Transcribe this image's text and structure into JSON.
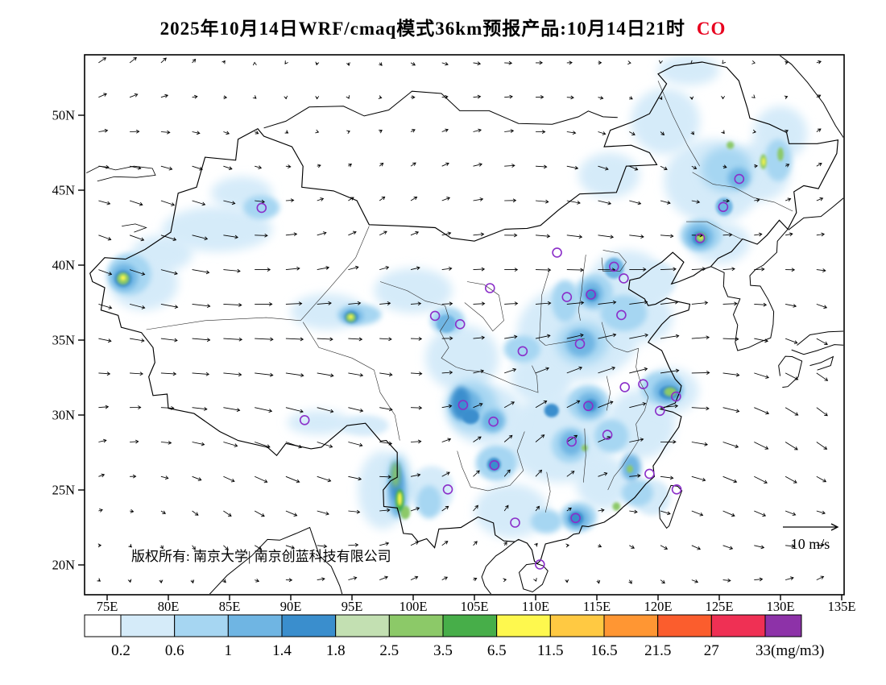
{
  "title": {
    "main": "2025年10月14日WRF/cmaq模式36km预报产品:10月14日21时",
    "species": "CO",
    "species_color": "#e8001e"
  },
  "map": {
    "copyright": "版权所有: 南京大学| 南京创蓝科技有限公司",
    "wind_scale_label": "10 m/s",
    "lat_ticks": [
      "20N",
      "25N",
      "30N",
      "35N",
      "40N",
      "45N",
      "50N"
    ],
    "lon_ticks": [
      "75E",
      "80E",
      "85E",
      "90E",
      "95E",
      "100E",
      "105E",
      "110E",
      "115E",
      "120E",
      "125E",
      "130E",
      "135E"
    ]
  },
  "colorbar": {
    "labels": [
      "0.2",
      "0.6",
      "1",
      "1.4",
      "1.8",
      "2.5",
      "3.5",
      "6.5",
      "11.5",
      "16.5",
      "21.5",
      "27",
      "33"
    ],
    "unit": "(mg/m3)",
    "colors": [
      "#ffffff",
      "#d5ebf9",
      "#a6d6f2",
      "#6fb5e3",
      "#3a8ecd",
      "#c3e0b2",
      "#8cc968",
      "#47ae49",
      "#fef84e",
      "#ffc942",
      "#ff9633",
      "#fb5d2d",
      "#ef3054",
      "#8d32a8"
    ]
  },
  "chart_data": {
    "type": "heatmap",
    "title": "WRF/CMAQ 36km CO surface concentration forecast with wind vectors",
    "species": "CO",
    "unit": "mg/m3",
    "valid_time": "10月14日21时",
    "levels_mg_m3": [
      0.2,
      0.6,
      1,
      1.4,
      1.8,
      2.5,
      3.5,
      6.5,
      11.5,
      16.5,
      21.5,
      27,
      33
    ],
    "lon_ticks_deg": [
      75,
      80,
      85,
      90,
      95,
      100,
      105,
      110,
      115,
      120,
      125,
      130,
      135
    ],
    "lat_ticks_deg": [
      20,
      25,
      30,
      35,
      40,
      45,
      50
    ],
    "lon_extent": [
      73.2,
      135.2
    ],
    "lat_extent": [
      18,
      54
    ],
    "wind_reference_ms": 10,
    "cities": [
      [
        87.62,
        43.82
      ],
      [
        91.13,
        29.66
      ],
      [
        101.78,
        36.62
      ],
      [
        103.83,
        36.06
      ],
      [
        106.27,
        38.47
      ],
      [
        111.75,
        40.84
      ],
      [
        116.4,
        39.9
      ],
      [
        117.2,
        39.12
      ],
      [
        114.51,
        38.04
      ],
      [
        112.55,
        37.87
      ],
      [
        123.43,
        41.8
      ],
      [
        125.32,
        43.88
      ],
      [
        126.63,
        45.75
      ],
      [
        117.0,
        36.67
      ],
      [
        113.62,
        34.75
      ],
      [
        108.94,
        34.26
      ],
      [
        104.07,
        30.67
      ],
      [
        106.55,
        29.56
      ],
      [
        102.83,
        25.04
      ],
      [
        106.63,
        26.65
      ],
      [
        108.32,
        22.82
      ],
      [
        113.26,
        23.13
      ],
      [
        110.35,
        20.03
      ],
      [
        112.94,
        28.23
      ],
      [
        114.3,
        30.6
      ],
      [
        115.86,
        28.68
      ],
      [
        117.28,
        31.86
      ],
      [
        118.78,
        32.06
      ],
      [
        121.47,
        31.23
      ],
      [
        120.15,
        30.28
      ],
      [
        119.3,
        26.08
      ],
      [
        121.52,
        25.04
      ]
    ],
    "hotspots": [
      [
        84,
        42.4,
        4.5,
        1.5,
        2
      ],
      [
        79.5,
        40.8,
        2.5,
        1.2,
        2
      ],
      [
        78,
        38.8,
        2.8,
        1.8,
        2
      ],
      [
        86,
        44.8,
        2.5,
        1.1,
        2
      ],
      [
        93,
        36.9,
        3,
        1.2,
        2
      ],
      [
        100,
        38.3,
        3.2,
        1.5,
        2
      ],
      [
        104,
        33.8,
        3,
        2.2,
        2
      ],
      [
        113.5,
        35.5,
        5,
        3.2,
        2
      ],
      [
        117.5,
        38.7,
        3.2,
        2.3,
        2
      ],
      [
        112,
        28.5,
        4.5,
        3,
        2
      ],
      [
        118.6,
        29.4,
        2.8,
        2.3,
        2
      ],
      [
        124.5,
        45.6,
        4,
        2.8,
        2
      ],
      [
        120.6,
        49.6,
        2.8,
        2.2,
        2
      ],
      [
        128.5,
        46.3,
        2.3,
        2,
        2
      ],
      [
        108,
        23.6,
        3,
        1.8,
        2
      ],
      [
        121,
        31.6,
        2.3,
        1.5,
        2
      ],
      [
        97.5,
        25,
        2,
        2.6,
        2
      ],
      [
        92.3,
        29.5,
        2.6,
        0.8,
        2
      ],
      [
        106,
        30,
        3,
        2,
        2
      ],
      [
        130,
        48.8,
        2.2,
        1.8,
        2
      ],
      [
        125,
        41.5,
        2.5,
        1.4,
        2
      ],
      [
        119,
        36.5,
        2.2,
        1.6,
        2
      ],
      [
        110.5,
        32.5,
        2.5,
        1.8,
        2
      ],
      [
        115.5,
        25.5,
        2.2,
        1.8,
        2
      ],
      [
        101.5,
        25,
        1.8,
        1.6,
        2
      ],
      [
        96,
        29.3,
        2,
        0.7,
        2
      ],
      [
        122.5,
        53,
        2.5,
        1,
        2
      ],
      [
        116,
        46,
        2.5,
        1.5,
        2
      ],
      [
        120,
        39,
        1.5,
        1.2,
        2
      ],
      [
        119.5,
        24.5,
        1.5,
        1.2,
        2
      ],
      [
        76.8,
        39.4,
        1.8,
        1.4,
        3
      ],
      [
        87.6,
        43.85,
        1.5,
        0.8,
        3
      ],
      [
        95.6,
        36.7,
        1.8,
        0.7,
        3
      ],
      [
        102.8,
        36.3,
        1.4,
        0.9,
        3
      ],
      [
        104.8,
        30.6,
        2.1,
        1.7,
        3
      ],
      [
        106.8,
        26.8,
        1.7,
        1.2,
        3
      ],
      [
        113.8,
        34.8,
        2.1,
        1.4,
        3
      ],
      [
        114.3,
        30.8,
        1.7,
        1.2,
        3
      ],
      [
        112.8,
        28,
        1.5,
        1.2,
        3
      ],
      [
        116.2,
        28.6,
        1.4,
        1.1,
        3
      ],
      [
        117.2,
        36.8,
        1.9,
        1.2,
        3
      ],
      [
        114.8,
        38.2,
        1.5,
        1.2,
        3
      ],
      [
        112.4,
        37.6,
        1.1,
        1.4,
        3
      ],
      [
        108.9,
        34.4,
        1.5,
        0.9,
        3
      ],
      [
        120.3,
        31.8,
        1.7,
        1.1,
        3
      ],
      [
        113.5,
        23.2,
        1.5,
        1,
        3
      ],
      [
        125.6,
        46.4,
        2.1,
        1.5,
        3
      ],
      [
        123.5,
        42,
        1.7,
        1.1,
        3
      ],
      [
        98.8,
        25.3,
        0.9,
        2.1,
        3
      ],
      [
        118.3,
        24.8,
        1.3,
        0.9,
        3
      ],
      [
        106.4,
        29.7,
        1.2,
        0.9,
        3
      ],
      [
        129.8,
        47,
        1.1,
        1.4,
        3
      ],
      [
        110.9,
        22.9,
        1.3,
        0.8,
        3
      ],
      [
        101.3,
        24.2,
        1,
        1.1,
        3
      ],
      [
        76.4,
        39.2,
        1.1,
        0.9,
        4
      ],
      [
        104.3,
        30.7,
        1.3,
        1,
        4
      ],
      [
        106.5,
        29.6,
        0.9,
        0.7,
        4
      ],
      [
        114.4,
        30.7,
        1,
        0.8,
        4
      ],
      [
        113.7,
        34.8,
        1.2,
        0.9,
        4
      ],
      [
        114.6,
        38.1,
        0.9,
        0.8,
        4
      ],
      [
        116.4,
        39.8,
        0.8,
        0.7,
        4
      ],
      [
        120.8,
        31.6,
        1.2,
        0.8,
        4
      ],
      [
        123.4,
        41.9,
        1.1,
        0.8,
        4
      ],
      [
        125.4,
        43.9,
        0.7,
        0.6,
        4
      ],
      [
        98.7,
        24.8,
        0.7,
        1.6,
        4
      ],
      [
        95,
        36.6,
        0.9,
        0.5,
        4
      ],
      [
        102.7,
        36.1,
        0.8,
        0.6,
        4
      ],
      [
        112.9,
        28.1,
        0.9,
        0.8,
        4
      ],
      [
        113.4,
        23.1,
        1,
        0.7,
        4
      ],
      [
        126.6,
        45.8,
        0.9,
        0.7,
        4
      ],
      [
        117.8,
        26.5,
        0.8,
        0.9,
        4
      ],
      [
        103.9,
        30.8,
        0.75,
        1.1,
        5
      ],
      [
        104.7,
        29.9,
        0.7,
        0.5,
        5
      ],
      [
        114.5,
        30.65,
        0.5,
        0.4,
        5
      ],
      [
        120.9,
        31.5,
        0.8,
        0.45,
        5
      ],
      [
        123.4,
        41.8,
        0.6,
        0.45,
        5
      ],
      [
        98.6,
        25.6,
        0.45,
        1.3,
        5
      ],
      [
        114.6,
        38,
        0.5,
        0.4,
        5
      ],
      [
        106.6,
        26.7,
        0.55,
        0.45,
        5
      ],
      [
        76.3,
        39.1,
        0.7,
        0.55,
        5
      ],
      [
        94.95,
        36.55,
        0.55,
        0.4,
        5
      ],
      [
        113.3,
        23.1,
        0.6,
        0.45,
        5
      ],
      [
        111.3,
        30.3,
        0.6,
        0.45,
        5
      ],
      [
        76.3,
        39.1,
        0.5,
        0.4,
        7
      ],
      [
        94.9,
        36.5,
        0.4,
        0.3,
        7
      ],
      [
        98.55,
        26,
        0.3,
        0.85,
        7
      ],
      [
        99.35,
        23.5,
        0.4,
        0.45,
        7
      ],
      [
        123.5,
        41.85,
        0.4,
        0.3,
        7
      ],
      [
        121,
        31.55,
        0.5,
        0.3,
        7
      ],
      [
        125.9,
        48,
        0.3,
        0.25,
        7
      ],
      [
        128.6,
        46.9,
        0.27,
        0.5,
        7
      ],
      [
        130,
        47.4,
        0.25,
        0.45,
        7
      ],
      [
        116.6,
        23.9,
        0.32,
        0.28,
        7
      ],
      [
        114,
        27.8,
        0.25,
        0.22,
        7
      ],
      [
        117.7,
        26.4,
        0.25,
        0.25,
        7
      ],
      [
        98.9,
        24.3,
        0.35,
        0.75,
        8
      ],
      [
        76.3,
        39.15,
        0.22,
        0.18,
        9
      ],
      [
        94.9,
        36.55,
        0.18,
        0.14,
        9
      ],
      [
        98.9,
        24.4,
        0.18,
        0.45,
        9
      ],
      [
        123.5,
        41.85,
        0.16,
        0.13,
        9
      ],
      [
        128.62,
        46.9,
        0.13,
        0.28,
        9
      ]
    ]
  }
}
